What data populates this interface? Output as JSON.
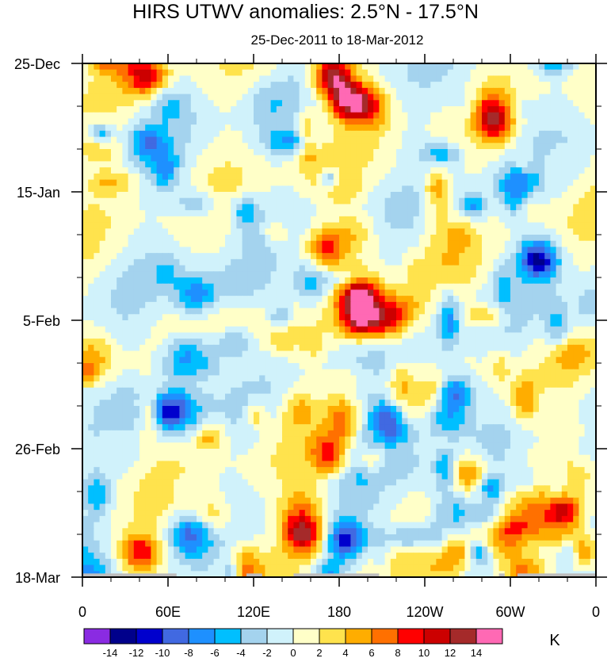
{
  "chart_data": {
    "type": "heatmap",
    "title": "HIRS UTWV anomalies: 2.5°N - 17.5°N",
    "subtitle": "25-Dec-2011 to 18-Mar-2012",
    "xlabel": "",
    "ylabel": "",
    "x_ticks": [
      "0",
      "60E",
      "120E",
      "180",
      "120W",
      "60W",
      "0"
    ],
    "x_tick_values": [
      0,
      60,
      120,
      180,
      240,
      300,
      360
    ],
    "y_ticks": [
      "25-Dec",
      "15-Jan",
      "5-Feb",
      "26-Feb",
      "18-Mar"
    ],
    "y_tick_values": [
      0,
      21,
      42,
      63,
      84
    ],
    "xlim": [
      0,
      360
    ],
    "ylim": [
      0,
      84
    ],
    "colorbar": {
      "levels": [
        "-14",
        "-12",
        "-10",
        "-8",
        "-6",
        "-4",
        "-2",
        "0",
        "2",
        "4",
        "6",
        "8",
        "10",
        "12",
        "14"
      ],
      "colors": [
        "#8a2be2",
        "#00008b",
        "#0000cd",
        "#4169e1",
        "#1e90ff",
        "#00bfff",
        "#a4d3ee",
        "#d0f2fb",
        "#ffffc8",
        "#ffe34d",
        "#ffad00",
        "#ff7000",
        "#ff0000",
        "#cc0000",
        "#a52a2a",
        "#ff69b4"
      ],
      "unit": "K"
    },
    "features": [
      {
        "lon": 185,
        "day": 6,
        "value": 12
      },
      {
        "lon": 175,
        "day": 2,
        "value": 14
      },
      {
        "lon": 200,
        "day": 7,
        "value": 8
      },
      {
        "lon": 195,
        "day": 38,
        "value": 14
      },
      {
        "lon": 195,
        "day": 42,
        "value": 12
      },
      {
        "lon": 215,
        "day": 42,
        "value": 10
      },
      {
        "lon": 170,
        "day": 30,
        "value": 8
      },
      {
        "lon": 175,
        "day": 64,
        "value": 10
      },
      {
        "lon": 155,
        "day": 77,
        "value": 12
      },
      {
        "lon": 45,
        "day": 2,
        "value": 10
      },
      {
        "lon": 80,
        "day": 38,
        "value": -8
      },
      {
        "lon": 60,
        "day": 57,
        "value": -10
      },
      {
        "lon": 215,
        "day": 58,
        "value": -10
      },
      {
        "lon": 260,
        "day": 54,
        "value": -10
      },
      {
        "lon": 320,
        "day": 32,
        "value": -12
      },
      {
        "lon": 185,
        "day": 78,
        "value": -10
      },
      {
        "lon": 75,
        "day": 77,
        "value": -8
      },
      {
        "lon": 305,
        "day": 20,
        "value": -6
      },
      {
        "lon": 40,
        "day": 80,
        "value": 10
      },
      {
        "lon": 270,
        "day": 67,
        "value": 8
      },
      {
        "lon": 350,
        "day": 80,
        "value": 8
      }
    ]
  }
}
